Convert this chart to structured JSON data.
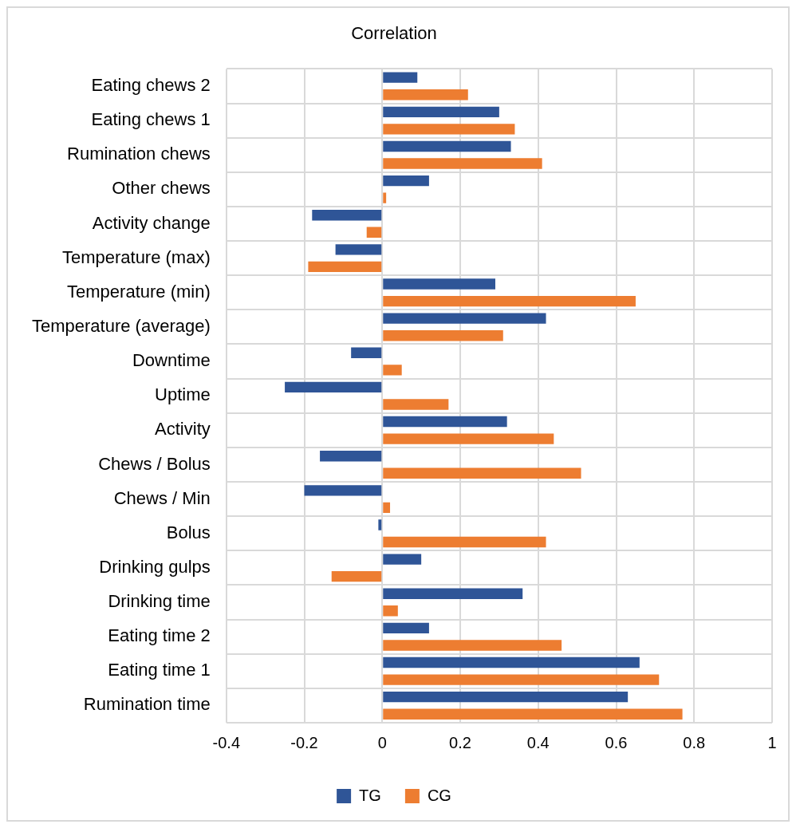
{
  "chart_data": {
    "type": "bar",
    "orientation": "horizontal",
    "title": "Correlation",
    "categories": [
      "Eating chews 2",
      "Eating chews 1",
      "Rumination chews",
      "Other chews",
      "Activity change",
      "Temperature (max)",
      "Temperature (min)",
      "Temperature (average)",
      "Downtime",
      "Uptime",
      "Activity",
      "Chews / Bolus",
      "Chews / Min",
      "Bolus",
      "Drinking gulps",
      "Drinking time",
      "Eating time 2",
      "Eating time 1",
      "Rumination time"
    ],
    "series": [
      {
        "name": "TG",
        "color": "#2f5597",
        "values": [
          0.09,
          0.3,
          0.33,
          0.12,
          -0.18,
          -0.12,
          0.29,
          0.42,
          -0.08,
          -0.25,
          0.32,
          -0.16,
          -0.2,
          -0.01,
          0.1,
          0.36,
          0.12,
          0.66,
          0.63
        ]
      },
      {
        "name": "CG",
        "color": "#ed7d31",
        "values": [
          0.22,
          0.34,
          0.41,
          0.01,
          -0.04,
          -0.19,
          0.65,
          0.31,
          0.05,
          0.17,
          0.44,
          0.51,
          0.02,
          0.42,
          -0.13,
          0.04,
          0.46,
          0.71,
          0.77
        ]
      }
    ],
    "xlim": [
      -0.4,
      1
    ],
    "xticks": [
      -0.4,
      -0.2,
      0,
      0.2,
      0.4,
      0.6,
      0.8,
      1
    ],
    "grid": true,
    "legend": "bottom"
  }
}
